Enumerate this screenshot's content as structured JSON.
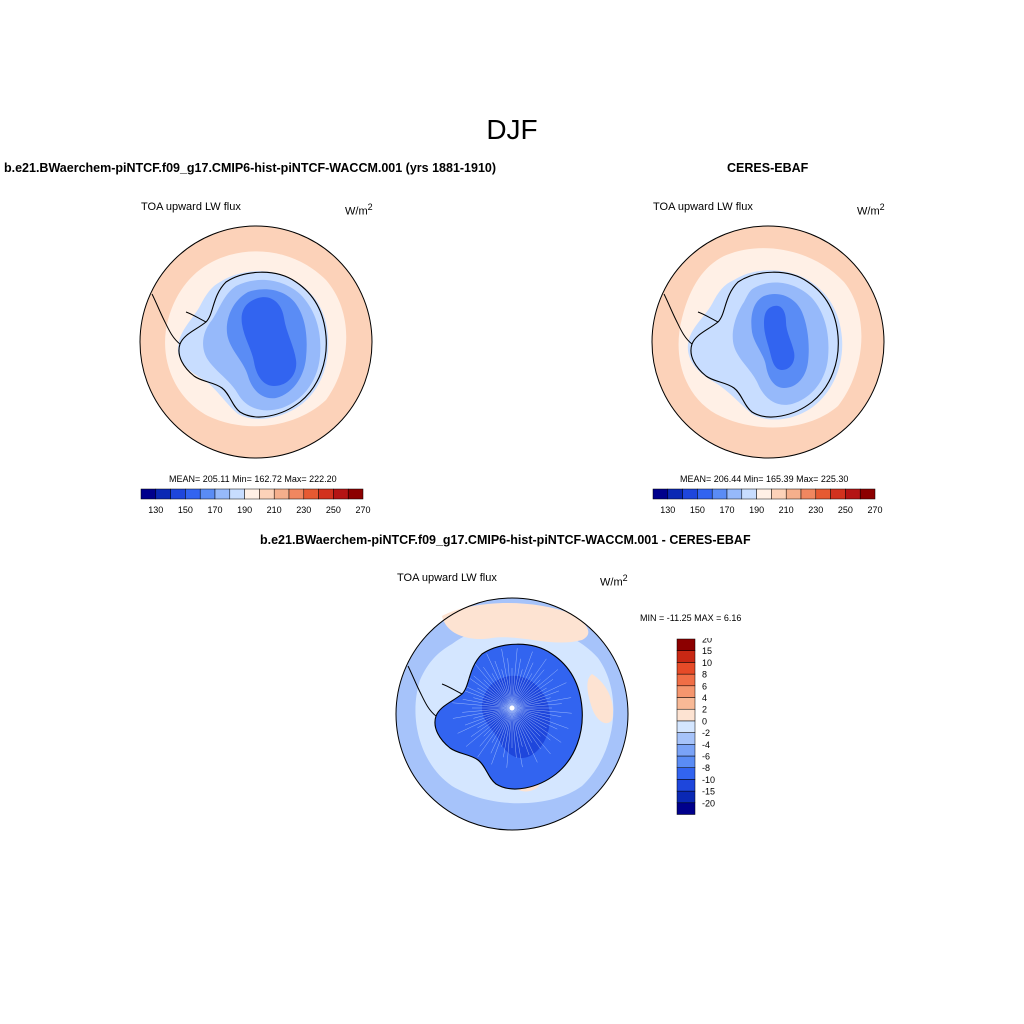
{
  "figure": {
    "title": "DJF"
  },
  "panels": {
    "model": {
      "title": "b.e21.BWaerchem-piNTCF.f09_g17.CMIP6-hist-piNTCF-WACCM.001 (yrs 1881-1910)",
      "variable": "TOA upward LW flux",
      "units": "W/m",
      "units_exp": "2",
      "stats": "MEAN= 205.11  Min= 162.72  Max= 222.20"
    },
    "obs": {
      "title": "CERES-EBAF",
      "variable": "TOA upward LW flux",
      "units": "W/m",
      "units_exp": "2",
      "stats": "MEAN= 206.44  Min= 165.39  Max= 225.30"
    },
    "diff": {
      "title": "b.e21.BWaerchem-piNTCF.f09_g17.CMIP6-hist-piNTCF-WACCM.001 - CERES-EBAF",
      "variable": "TOA upward LW flux",
      "units": "W/m",
      "units_exp": "2",
      "minmax": "MIN = -11.25 MAX =   6.16"
    }
  },
  "colorbar_abs": {
    "colors": [
      "#00008c",
      "#0a28b4",
      "#1e46dc",
      "#3264f0",
      "#5a8cf5",
      "#96b9fa",
      "#c8ddff",
      "#fff0e6",
      "#fcd2b9",
      "#f5af8c",
      "#f08760",
      "#e65a32",
      "#d2321e",
      "#b41414",
      "#8c0000"
    ],
    "tick_labels": [
      "130",
      "150",
      "170",
      "190",
      "210",
      "230",
      "250",
      "270"
    ]
  },
  "colorbar_diff": {
    "colors": [
      "#00008c",
      "#0a28b4",
      "#1e46dc",
      "#3264f0",
      "#5a8cf5",
      "#7aa3f7",
      "#a6c3fa",
      "#d4e6ff",
      "#fde3d2",
      "#f8b996",
      "#f5966e",
      "#f06e46",
      "#e64b28",
      "#c82814",
      "#8c0000"
    ],
    "tick_labels": [
      "-20",
      "-15",
      "-10",
      "-8",
      "-6",
      "-4",
      "-2",
      "0",
      "2",
      "4",
      "6",
      "8",
      "10",
      "15",
      "20"
    ]
  },
  "map_colors": {
    "ocean_warm": "#fcd2b9",
    "ocean_light": "#fff0e6",
    "ice_edge": "#c8ddff",
    "ice_mid": "#96b9fa",
    "ice_core": "#5a8cf5",
    "ice_deep": "#3264f0",
    "diff_ocean_neg": "#a6c3fa",
    "diff_ocean_light": "#d4e6ff",
    "diff_ocean_pos": "#fde3d2",
    "diff_land": "#3264f0",
    "diff_land_deep": "#1e46dc"
  }
}
